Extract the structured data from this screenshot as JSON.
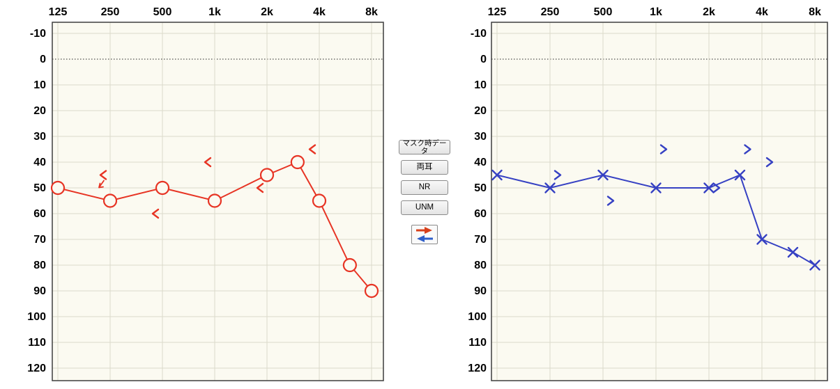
{
  "page": {
    "background": "#ffffff"
  },
  "controls": {
    "buttons": [
      {
        "label": "マスク時データ"
      },
      {
        "label": "両耳"
      },
      {
        "label": "NR"
      },
      {
        "label": "UNM"
      }
    ],
    "transfer_button": {
      "right_arrow_color": "#d8401b",
      "left_arrow_color": "#2f5fc9"
    }
  },
  "chart_style": {
    "plot_background": "#fbfaf1",
    "grid_color": "#dbdacb",
    "border_color": "#3d3d3d",
    "zero_line_color": "#222222"
  },
  "chart_data": [
    {
      "type": "scatter",
      "name": "right-ear-audiogram",
      "ear": "right",
      "color": "#e73424",
      "x_tick_labels": [
        "125",
        "250",
        "500",
        "1k",
        "2k",
        "4k",
        "8k"
      ],
      "x_tick_freqs": [
        125,
        250,
        500,
        1000,
        2000,
        4000,
        8000
      ],
      "y_ticks": [
        -10,
        0,
        10,
        20,
        30,
        40,
        50,
        60,
        70,
        80,
        90,
        100,
        110,
        120
      ],
      "ylim": [
        -10,
        120
      ],
      "grid": true,
      "series": [
        {
          "name": "air-conduction",
          "symbol": "circle",
          "connect": true,
          "x_offset": 0,
          "points": [
            {
              "f": 125,
              "db": 50
            },
            {
              "f": 250,
              "db": 55
            },
            {
              "f": 500,
              "db": 50
            },
            {
              "f": 1000,
              "db": 55
            },
            {
              "f": 2000,
              "db": 45
            },
            {
              "f": 3000,
              "db": 40
            },
            {
              "f": 4000,
              "db": 55
            },
            {
              "f": 6000,
              "db": 80
            },
            {
              "f": 8000,
              "db": 90
            }
          ]
        },
        {
          "name": "bone-conduction",
          "symbol": "<",
          "connect": false,
          "x_offset": -10,
          "points": [
            {
              "f": 250,
              "db": 45,
              "no_response": true
            },
            {
              "f": 500,
              "db": 60
            },
            {
              "f": 1000,
              "db": 40
            },
            {
              "f": 2000,
              "db": 50
            },
            {
              "f": 4000,
              "db": 35
            }
          ]
        }
      ]
    },
    {
      "type": "scatter",
      "name": "left-ear-audiogram",
      "ear": "left",
      "color": "#3641c3",
      "x_tick_labels": [
        "125",
        "250",
        "500",
        "1k",
        "2k",
        "4k",
        "8k"
      ],
      "x_tick_freqs": [
        125,
        250,
        500,
        1000,
        2000,
        4000,
        8000
      ],
      "y_ticks": [
        -10,
        0,
        10,
        20,
        30,
        40,
        50,
        60,
        70,
        80,
        90,
        100,
        110,
        120
      ],
      "ylim": [
        -10,
        120
      ],
      "grid": true,
      "series": [
        {
          "name": "air-conduction",
          "symbol": "x",
          "connect": true,
          "x_offset": 0,
          "points": [
            {
              "f": 125,
              "db": 45
            },
            {
              "f": 250,
              "db": 50
            },
            {
              "f": 500,
              "db": 45
            },
            {
              "f": 1000,
              "db": 50
            },
            {
              "f": 2000,
              "db": 50
            },
            {
              "f": 3000,
              "db": 45
            },
            {
              "f": 4000,
              "db": 70
            },
            {
              "f": 6000,
              "db": 75
            },
            {
              "f": 8000,
              "db": 80
            }
          ]
        },
        {
          "name": "bone-conduction",
          "symbol": ">",
          "connect": false,
          "x_offset": 11,
          "points": [
            {
              "f": 250,
              "db": 45
            },
            {
              "f": 500,
              "db": 55
            },
            {
              "f": 1000,
              "db": 35
            },
            {
              "f": 2000,
              "db": 50
            },
            {
              "f": 3000,
              "db": 35
            },
            {
              "f": 4000,
              "db": 40
            }
          ]
        }
      ]
    }
  ]
}
